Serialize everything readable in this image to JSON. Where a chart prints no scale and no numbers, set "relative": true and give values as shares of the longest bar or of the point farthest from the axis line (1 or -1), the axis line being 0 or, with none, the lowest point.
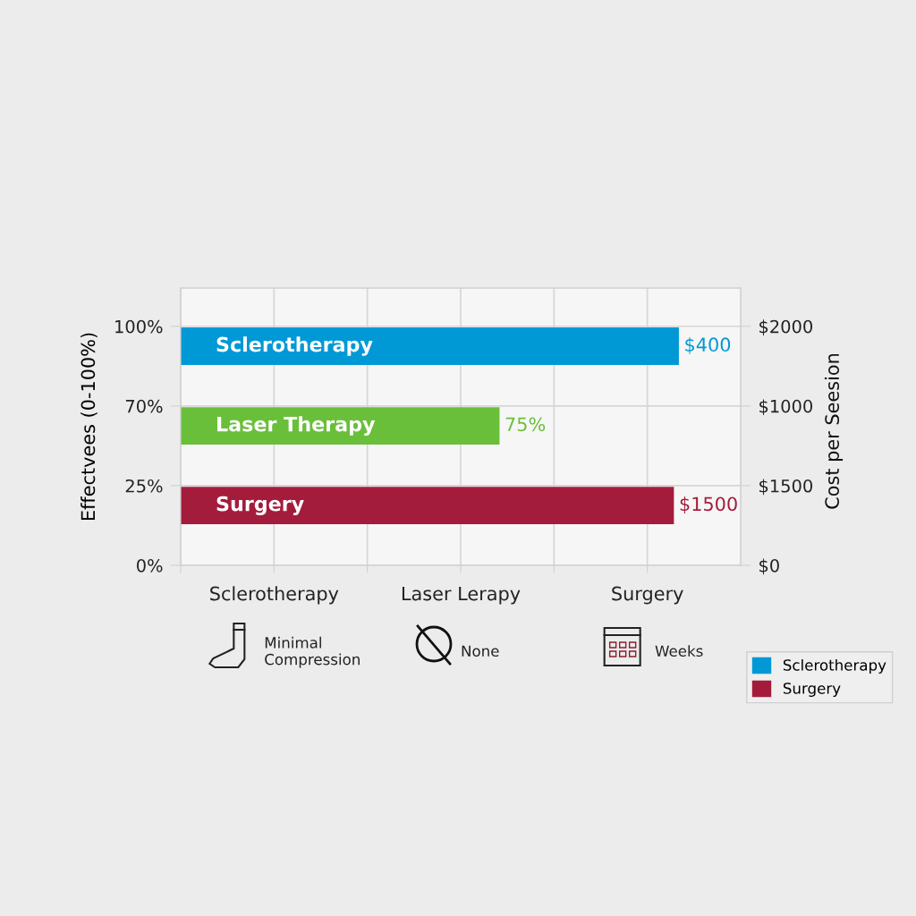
{
  "chart_data": {
    "type": "bar",
    "orientation": "horizontal",
    "relative": true,
    "categories": [
      "Sclerotherapy",
      "Laser Therapy",
      "Surgery"
    ],
    "series": [
      {
        "name": "Sclerotherapy",
        "color": "#0099d6",
        "values": [
          1,
          null,
          null
        ]
      },
      {
        "color": "#6abf3a",
        "values": [
          null,
          0.64,
          null
        ]
      },
      {
        "name": "Surgery",
        "color": "#a41c3c",
        "values": [
          null,
          null,
          0.99
        ]
      }
    ],
    "ylabel": "Effectvees (0-100%)",
    "annotations": [
      "100%",
      "70%",
      "25%",
      "0%",
      "$2000",
      "$1000",
      "$1500",
      "$0",
      "Sclerotherapy",
      "Laser Lerapy",
      "Surgery",
      "Minimal\nCompression",
      "None",
      "Weeks",
      "$400",
      "75%",
      "$1500",
      "Cost per Seesion"
    ],
    "grid": true,
    "legend": "bottom right"
  }
}
